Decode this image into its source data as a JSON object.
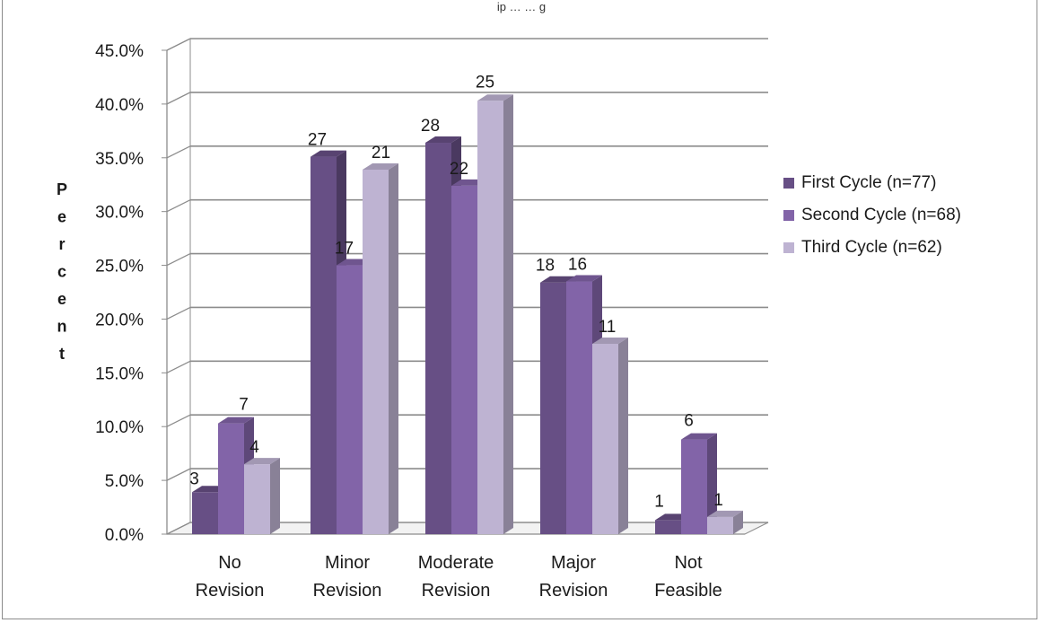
{
  "chart_data": {
    "type": "bar",
    "title": "",
    "top_text": "ip … … g",
    "ylabel": "Percent",
    "xlabel": "",
    "ylim": [
      0,
      45
    ],
    "yticks": [
      "0.0%",
      "5.0%",
      "10.0%",
      "15.0%",
      "20.0%",
      "25.0%",
      "30.0%",
      "35.0%",
      "40.0%",
      "45.0%"
    ],
    "grid": true,
    "legend_position": "right",
    "categories": [
      "No Revision",
      "Minor Revision",
      "Moderate Revision",
      "Major Revision",
      "Not Feasible"
    ],
    "category_lines": [
      [
        "No",
        "Revision"
      ],
      [
        "Minor",
        "Revision"
      ],
      [
        "Moderate",
        "Revision"
      ],
      [
        "Major",
        "Revision"
      ],
      [
        "Not",
        "Feasible"
      ]
    ],
    "series": [
      {
        "name": "First Cycle (n=77)",
        "values": [
          3.9,
          35.1,
          36.4,
          23.4,
          1.3
        ],
        "labels": [
          "3",
          "27",
          "28",
          "18",
          "1"
        ],
        "color": "#674f85"
      },
      {
        "name": "Second Cycle (n=68)",
        "values": [
          10.3,
          25.0,
          32.4,
          23.5,
          8.8
        ],
        "labels": [
          "7",
          "17",
          "22",
          "16",
          "6"
        ],
        "color": "#8264a8"
      },
      {
        "name": "Third Cycle (n=62)",
        "values": [
          6.5,
          33.9,
          40.3,
          17.7,
          1.6
        ],
        "labels": [
          "4",
          "21",
          "25",
          "11",
          "1"
        ],
        "color": "#beb3d2"
      }
    ]
  }
}
